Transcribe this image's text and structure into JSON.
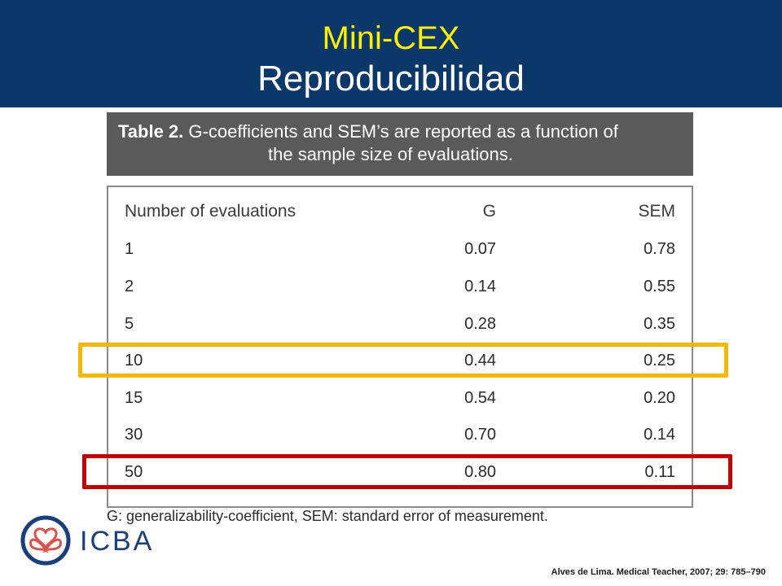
{
  "slide": {
    "title": "Mini-CEX",
    "subtitle": "Reproducibilidad"
  },
  "table": {
    "caption_label": "Table 2.",
    "caption_line1": " G-coefficients and SEM’s are reported as a function of",
    "caption_line2": "the sample size of evaluations.",
    "headers": [
      "Number of evaluations",
      "G",
      "SEM"
    ],
    "rows": [
      [
        "1",
        "0.07",
        "0.78"
      ],
      [
        "2",
        "0.14",
        "0.55"
      ],
      [
        "5",
        "0.28",
        "0.35"
      ],
      [
        "10",
        "0.44",
        "0.25"
      ],
      [
        "15",
        "0.54",
        "0.20"
      ],
      [
        "30",
        "0.70",
        "0.14"
      ],
      [
        "50",
        "0.80",
        "0.11"
      ]
    ],
    "footnote": "G: generalizability-coefficient, SEM: standard error of measurement."
  },
  "highlights": {
    "yellow_row": "10",
    "red_row": "50",
    "yellow_color": "#f5b800",
    "red_color": "#c00000"
  },
  "logo": {
    "text": "ICBA",
    "icon": "hearts-logo-icon"
  },
  "citation": "Alves de Lima. Medical Teacher, 2007; 29: 785–790",
  "colors": {
    "header_bg": "#0b3868",
    "title": "#fff200",
    "caption_bg": "#5a5a5a"
  }
}
